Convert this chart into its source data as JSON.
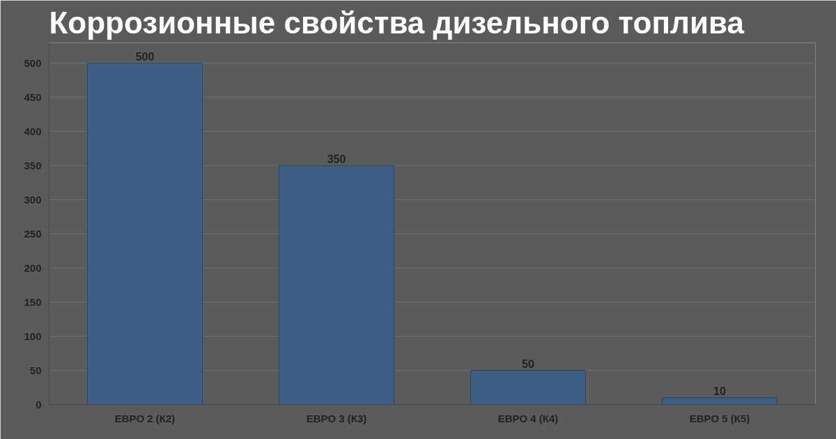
{
  "chart_data": {
    "type": "bar",
    "title": "Коррозионные свойства дизельного топлива",
    "categories": [
      "ЕВРО 2 (К2)",
      "ЕВРО 3 (К3)",
      "ЕВРО 4 (К4)",
      "ЕВРО 5 (К5)"
    ],
    "values": [
      500,
      350,
      50,
      10
    ],
    "color": "#3d5f86",
    "ylim": [
      0,
      530
    ],
    "yticks": [
      0,
      50,
      100,
      150,
      200,
      250,
      300,
      350,
      400,
      450,
      500
    ],
    "grid": "y",
    "data_labels": true
  }
}
